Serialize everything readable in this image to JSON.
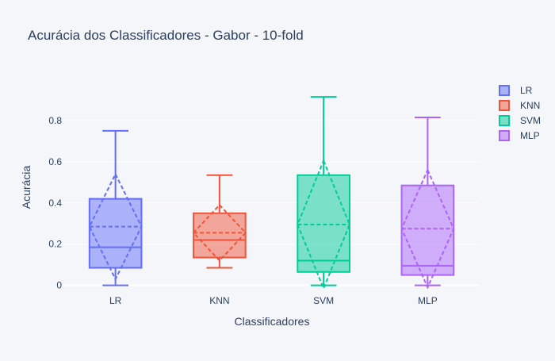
{
  "chart_data": {
    "type": "box",
    "title": "Acurácia dos Classificadores - Gabor - 10-fold",
    "xlabel": "Classificadores",
    "ylabel": "Acurácia",
    "ylim": [
      -0.04,
      1.0
    ],
    "yticks": [
      0,
      0.2,
      0.4,
      0.6,
      0.8
    ],
    "ytick_labels": [
      "0",
      "0.2",
      "0.4",
      "0.6",
      "0.8"
    ],
    "grid": true,
    "legend_position": "top-right",
    "boxmean": "sd",
    "series": [
      {
        "name": "LR",
        "color": "#636efa",
        "min": 0.0,
        "q1": 0.085,
        "median": 0.185,
        "q3": 0.42,
        "max": 0.75,
        "mean": 0.285,
        "sd": 0.255
      },
      {
        "name": "KNN",
        "color": "#ef553b",
        "min": 0.085,
        "q1": 0.135,
        "median": 0.22,
        "q3": 0.35,
        "max": 0.535,
        "mean": 0.255,
        "sd": 0.135
      },
      {
        "name": "SVM",
        "color": "#00cc96",
        "min": 0.0,
        "q1": 0.065,
        "median": 0.12,
        "q3": 0.535,
        "max": 0.915,
        "mean": 0.295,
        "sd": 0.31
      },
      {
        "name": "MLP",
        "color": "#ab63fa",
        "min": 0.0,
        "q1": 0.05,
        "median": 0.095,
        "q3": 0.485,
        "max": 0.815,
        "mean": 0.275,
        "sd": 0.285
      }
    ]
  }
}
